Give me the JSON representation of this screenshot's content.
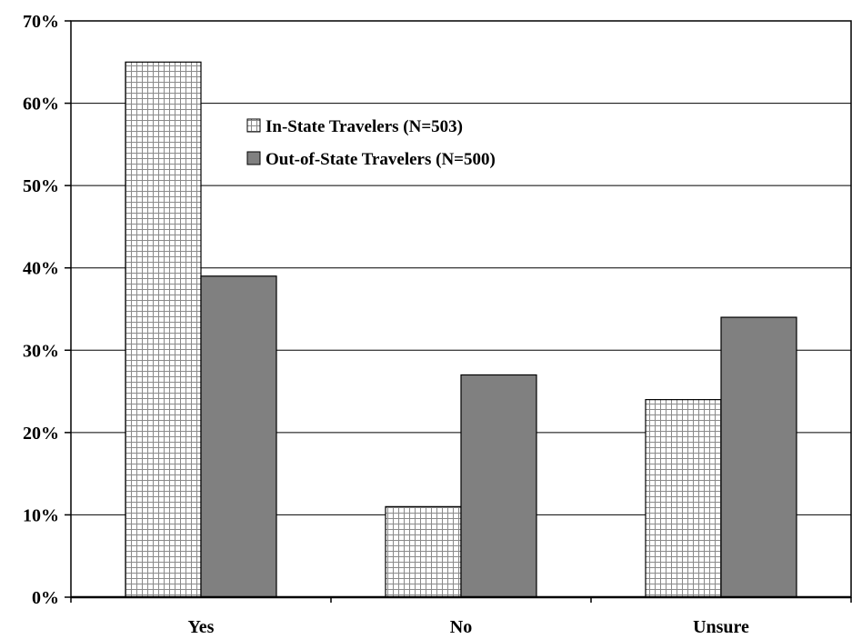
{
  "chart_data": {
    "type": "bar",
    "categories": [
      "Yes",
      "No",
      "Unsure"
    ],
    "series": [
      {
        "name": "In-State Travelers (N=503)",
        "values": [
          65,
          11,
          24
        ],
        "pattern": "grid",
        "color": "#ffffff"
      },
      {
        "name": "Out-of-State Travelers (N=500)",
        "values": [
          39,
          27,
          34
        ],
        "pattern": "solid",
        "color": "#808080"
      }
    ],
    "y_ticks": [
      "0%",
      "10%",
      "20%",
      "30%",
      "40%",
      "50%",
      "60%",
      "70%"
    ],
    "ylim": [
      0,
      70
    ],
    "grid": true,
    "legend_position": "top-center",
    "title": "",
    "xlabel": "",
    "ylabel": ""
  }
}
